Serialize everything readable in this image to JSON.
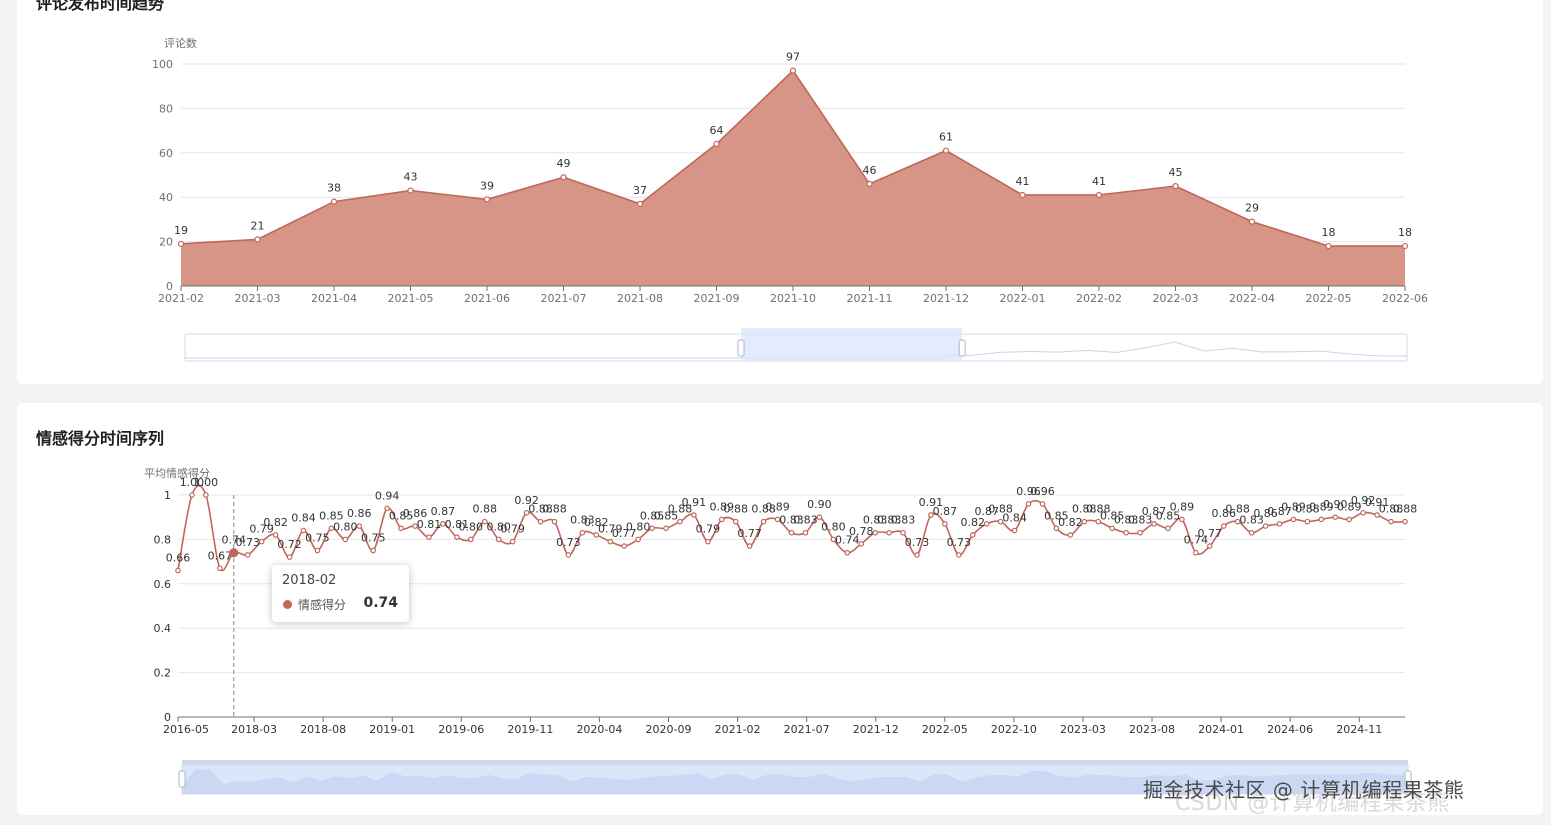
{
  "panels": {
    "top_title": "评论发布时间趋势",
    "bottom_title": "情感得分时间序列"
  },
  "tooltip": {
    "date": "2018-02",
    "label": "情感得分",
    "value": "0.74"
  },
  "watermark": {
    "text": "掘金技术社区 @ 计算机编程果茶熊",
    "ghost": "CSDN @计算机编程果茶熊"
  },
  "colors": {
    "line": "#c0675a",
    "area": "#d48f80",
    "grid": "#e4e6ea",
    "axis": "#6e7079",
    "slider_fill": "#dce6fb",
    "slider_border": "#d2dbee"
  },
  "chart_data": [
    {
      "type": "area",
      "title": "评论发布时间趋势",
      "ylabel": "评论数",
      "xlabel": "",
      "ylim": [
        0,
        100
      ],
      "yticks": [
        0,
        20,
        40,
        60,
        80,
        100
      ],
      "x": [
        "2021-02",
        "2021-03",
        "2021-04",
        "2021-05",
        "2021-06",
        "2021-07",
        "2021-08",
        "2021-09",
        "2021-10",
        "2021-11",
        "2021-12",
        "2022-01",
        "2022-02",
        "2022-03",
        "2022-04",
        "2022-05",
        "2022-06"
      ],
      "values": [
        19,
        21,
        38,
        43,
        39,
        49,
        37,
        64,
        97,
        46,
        61,
        41,
        41,
        45,
        29,
        18,
        18
      ],
      "data_labels": true,
      "grid": true,
      "zoom_window": [
        0.455,
        0.636
      ]
    },
    {
      "type": "line",
      "title": "情感得分时间序列",
      "ylabel": "平均情感得分",
      "xlabel": "",
      "ylim": [
        0,
        1
      ],
      "yticks": [
        0,
        0.2,
        0.4,
        0.6,
        0.8,
        1
      ],
      "ytick_labels": [
        "0",
        "0.2",
        "0.4",
        "0.6",
        "0.8",
        "1"
      ],
      "xticks": [
        "2016-05",
        "2018-03",
        "2018-08",
        "2019-01",
        "2019-06",
        "2019-11",
        "2020-04",
        "2020-09",
        "2021-02",
        "2021-07",
        "2021-12",
        "2022-05",
        "2022-10",
        "2023-03",
        "2023-08",
        "2024-01",
        "2024-06",
        "2024-11"
      ],
      "values": [
        0.66,
        1.0,
        1.0,
        0.67,
        0.74,
        0.73,
        0.79,
        0.82,
        0.72,
        0.84,
        0.75,
        0.85,
        0.8,
        0.86,
        0.75,
        0.94,
        0.85,
        0.86,
        0.81,
        0.87,
        0.81,
        0.8,
        0.88,
        0.8,
        0.79,
        0.92,
        0.88,
        0.88,
        0.73,
        0.83,
        0.82,
        0.79,
        0.77,
        0.8,
        0.85,
        0.85,
        0.88,
        0.91,
        0.79,
        0.89,
        0.88,
        0.77,
        0.88,
        0.89,
        0.83,
        0.83,
        0.9,
        0.8,
        0.74,
        0.78,
        0.83,
        0.83,
        0.83,
        0.73,
        0.91,
        0.87,
        0.73,
        0.82,
        0.87,
        0.88,
        0.84,
        0.96,
        0.96,
        0.85,
        0.82,
        0.88,
        0.88,
        0.85,
        0.83,
        0.83,
        0.87,
        0.85,
        0.89,
        0.74,
        0.77,
        0.86,
        0.88,
        0.83,
        0.86,
        0.87,
        0.89,
        0.88,
        0.89,
        0.9,
        0.89,
        0.92,
        0.91,
        0.88,
        0.88
      ],
      "series": [
        {
          "name": "情感得分"
        }
      ],
      "grid": true,
      "highlight": {
        "x": "2018-02",
        "value": 0.74
      },
      "zoom_window": [
        0.0,
        1.0
      ]
    }
  ]
}
